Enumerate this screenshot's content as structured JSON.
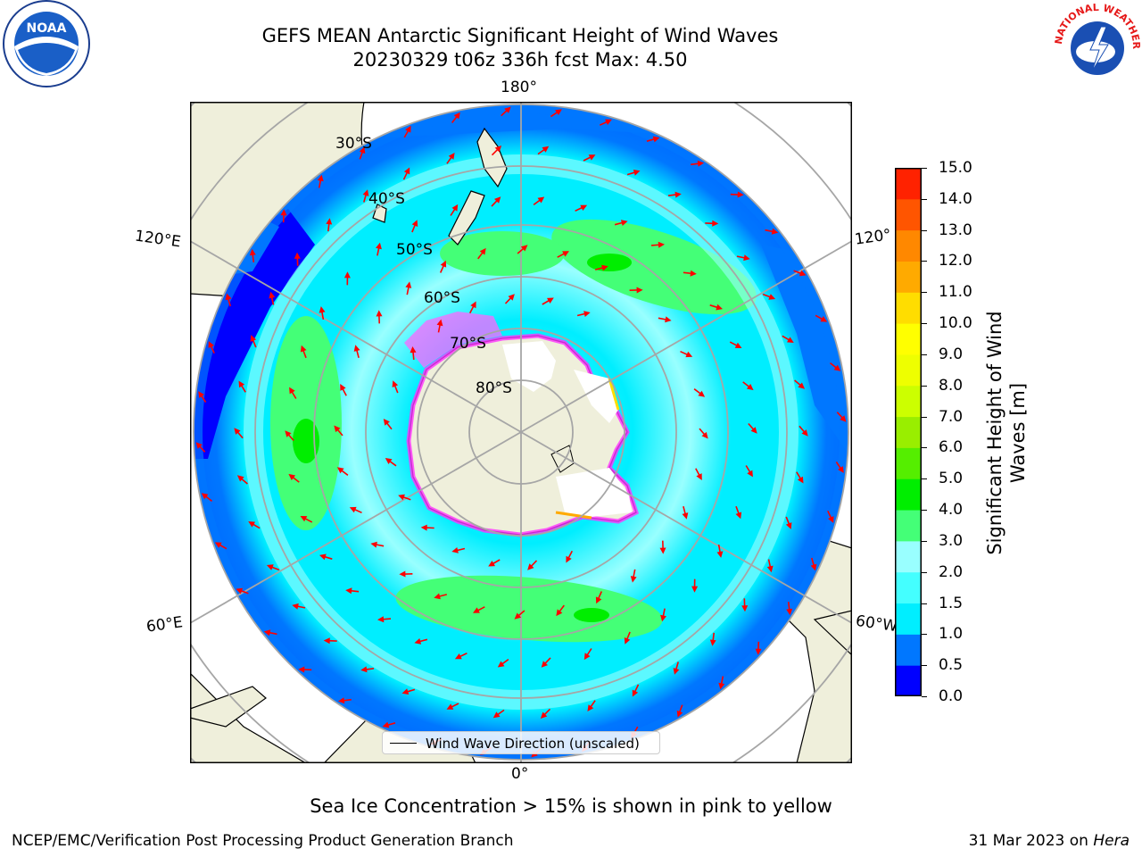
{
  "title": {
    "line1": "GEFS MEAN Antarctic Significant Height of Wind Waves",
    "line2": "20230329 t06z 336h fcst   Max: 4.50"
  },
  "map": {
    "projection": "south-polar-stereographic",
    "longitude_labels": [
      "180°",
      "120°E",
      "120°",
      "60°E",
      "60°W",
      "0°"
    ],
    "latitude_labels": [
      "30°S",
      "40°S",
      "50°S",
      "60°S",
      "70°S",
      "80°S"
    ],
    "vector_color": "#ff0000",
    "legend": {
      "label": "Wind Wave Direction (unscaled)"
    }
  },
  "colorbar": {
    "label": "Significant Height of Wind Waves [m]",
    "ticks": [
      "15.0",
      "14.0",
      "13.0",
      "12.0",
      "11.0",
      "10.0",
      "9.0",
      "8.0",
      "7.0",
      "6.0",
      "5.0",
      "4.0",
      "3.0",
      "2.0",
      "1.5",
      "1.0",
      "0.5",
      "0.0"
    ],
    "colors_bottom_to_top": [
      "#0000ff",
      "#0077ff",
      "#00eeff",
      "#44ffff",
      "#99ffff",
      "#44ff77",
      "#00ee00",
      "#55ee00",
      "#99ee00",
      "#ccff00",
      "#eeff00",
      "#ffff00",
      "#ffdd00",
      "#ffaa00",
      "#ff8800",
      "#ff5500",
      "#ff2200"
    ]
  },
  "notes": {
    "sea_ice": "Sea Ice Concentration > 15% is shown in pink to yellow"
  },
  "footer": {
    "left": "NCEP/EMC/Verification Post Processing Product Generation Branch",
    "date": "31 Mar 2023 on ",
    "machine": "Hera"
  },
  "logos": {
    "left": {
      "text": "NOAA"
    },
    "right": {
      "text": "NATIONAL WEATHER SERVICE"
    }
  }
}
